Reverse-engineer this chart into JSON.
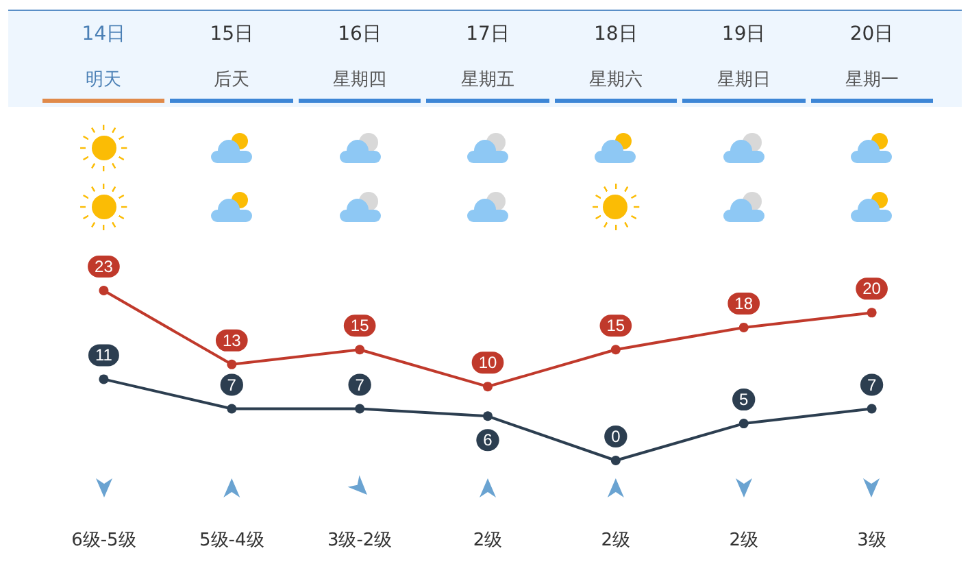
{
  "chart_data": {
    "type": "line",
    "categories": [
      "14日",
      "15日",
      "16日",
      "17日",
      "18日",
      "19日",
      "20日"
    ],
    "series": [
      {
        "color": "#c0392b",
        "values": [
          23,
          13,
          15,
          10,
          15,
          18,
          20
        ]
      },
      {
        "color": "#2c3e50",
        "values": [
          11,
          7,
          7,
          6,
          0,
          5,
          7
        ]
      }
    ],
    "annotations": [
      "明天",
      "后天",
      "星期四",
      "星期五",
      "星期六",
      "星期日",
      "星期一",
      "6级-5级",
      "5级-4级",
      "3级-2级",
      "2级",
      "2级",
      "2级",
      "3级"
    ],
    "data_labels": true,
    "marker": "circle",
    "grid": false
  }
}
